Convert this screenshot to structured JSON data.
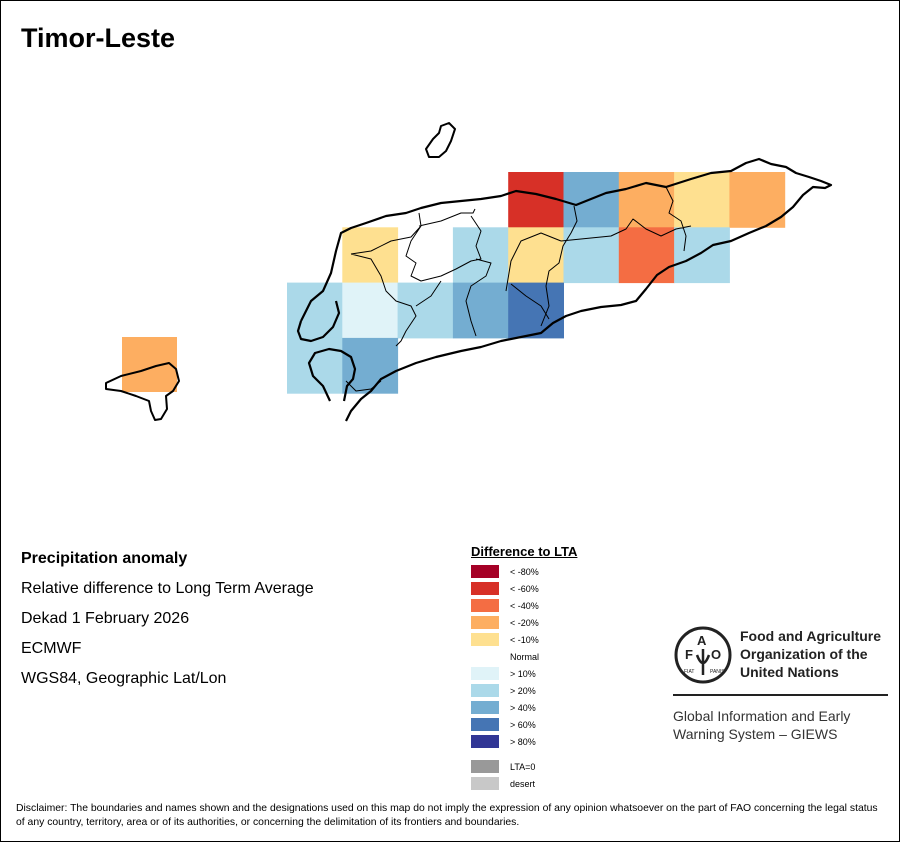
{
  "title": "Timor-Leste",
  "info": {
    "heading": "Precipitation anomaly",
    "line1": "Relative difference to Long Term Average",
    "line2": "Dekad 1 February 2026",
    "line3": "ECMWF",
    "line4": "WGS84, Geographic Lat/Lon"
  },
  "legend": {
    "title": "Difference to LTA",
    "items": [
      {
        "label": "< -80%",
        "color": "#a50026"
      },
      {
        "label": "< -60%",
        "color": "#d73027"
      },
      {
        "label": "< -40%",
        "color": "#f46d43"
      },
      {
        "label": "< -20%",
        "color": "#fdae61"
      },
      {
        "label": "< -10%",
        "color": "#fee090"
      },
      {
        "label": "Normal",
        "color": "#ffffff"
      },
      {
        "label": "> 10%",
        "color": "#e0f3f8"
      },
      {
        "label": "> 20%",
        "color": "#abd9e9"
      },
      {
        "label": "> 40%",
        "color": "#74add1"
      },
      {
        "label": "> 60%",
        "color": "#4575b4"
      },
      {
        "label": "> 80%",
        "color": "#313695"
      }
    ],
    "extra": [
      {
        "label": "LTA=0",
        "color": "#999999"
      },
      {
        "label": "desert",
        "color": "#c8c8c8"
      }
    ]
  },
  "anomaly_grid": {
    "note_categories": "values are legend item indices; null = no colour",
    "rows": [
      [
        null,
        null,
        null,
        null,
        1,
        8,
        3,
        4,
        3
      ],
      [
        null,
        4,
        null,
        7,
        4,
        7,
        2,
        7,
        null
      ],
      [
        7,
        6,
        7,
        8,
        9,
        null,
        null,
        null,
        null
      ],
      [
        7,
        8,
        null,
        null,
        null,
        null,
        null,
        null,
        null
      ]
    ],
    "oecusse": 3
  },
  "org": {
    "logo_text": "FAO FIAT PANIS",
    "name_line1": "Food and Agriculture",
    "name_line2": "Organization of the",
    "name_line3": "United Nations",
    "system_line1": "Global Information and Early",
    "system_line2": "Warning System – GIEWS"
  },
  "disclaimer": "Disclaimer: The boundaries and names shown and the designations used on this map do not imply the expression of any opinion whatsoever on the part of FAO concerning the legal status of any country, territory, area or of its authorities, or concerning the delimitation of its frontiers and boundaries."
}
